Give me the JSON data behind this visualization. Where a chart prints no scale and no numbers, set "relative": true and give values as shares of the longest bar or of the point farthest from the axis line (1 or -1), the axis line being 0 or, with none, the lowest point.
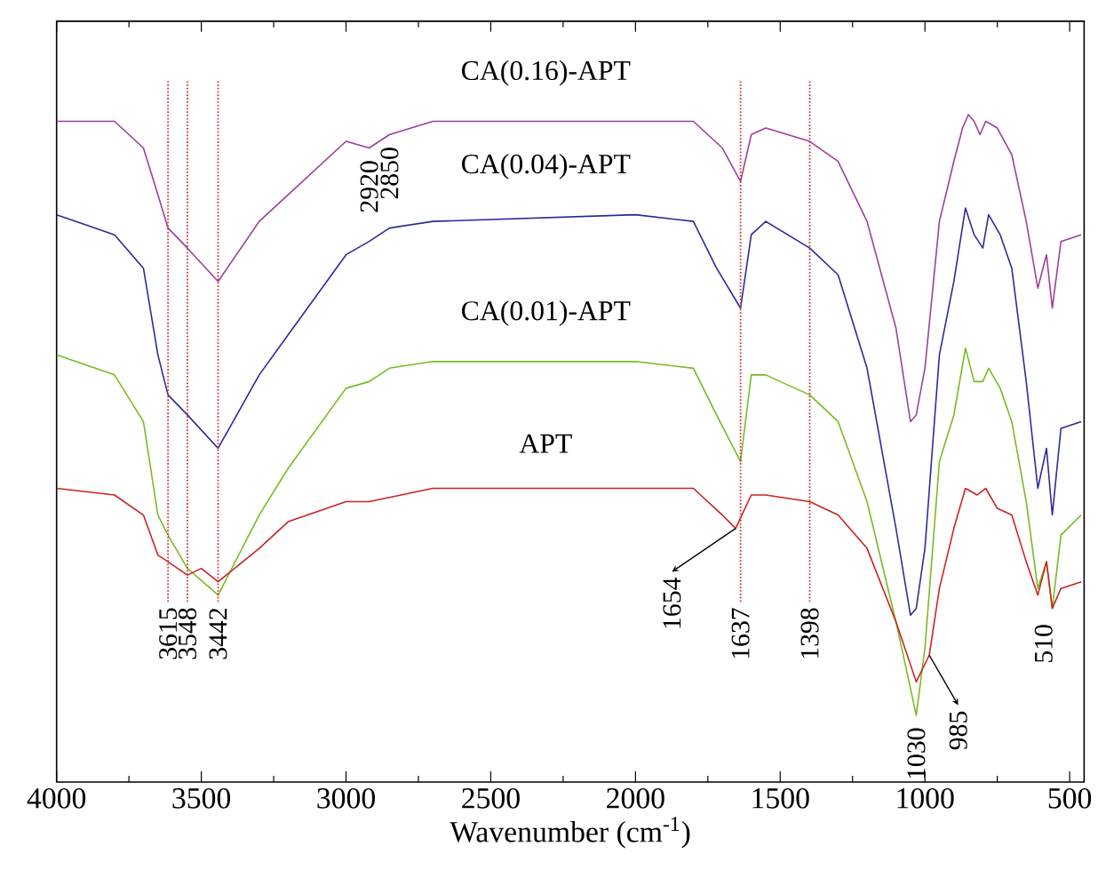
{
  "chart_data": {
    "type": "line",
    "relative": true,
    "xlabel": "Wavenumber (cm$^{-1}$)",
    "xlim": [
      4000,
      450
    ],
    "xticks": [
      4000,
      3500,
      3000,
      2500,
      2000,
      1500,
      1000,
      500
    ],
    "tick_labels": "x",
    "series": [
      {
        "name": "CA(0.16)-APT",
        "color": "#9b3f9b",
        "x": [
          4000,
          3800,
          3700,
          3650,
          3615,
          3548,
          3442,
          3300,
          3200,
          3000,
          2920,
          2850,
          2700,
          2000,
          1800,
          1700,
          1637,
          1600,
          1550,
          1398,
          1300,
          1200,
          1100,
          1050,
          1030,
          1000,
          950,
          900,
          870,
          850,
          830,
          810,
          790,
          750,
          700,
          650,
          610,
          580,
          560,
          530,
          460
        ],
        "values": [
          0.99,
          0.99,
          0.95,
          0.88,
          0.83,
          0.8,
          0.75,
          0.84,
          0.88,
          0.96,
          0.95,
          0.97,
          0.99,
          0.99,
          0.99,
          0.95,
          0.9,
          0.97,
          0.98,
          0.96,
          0.93,
          0.84,
          0.68,
          0.54,
          0.55,
          0.62,
          0.84,
          0.93,
          0.98,
          1.0,
          0.99,
          0.97,
          0.99,
          0.98,
          0.94,
          0.84,
          0.74,
          0.79,
          0.71,
          0.81,
          0.82
        ]
      },
      {
        "name": "CA(0.04)-APT",
        "color": "#2a2a9a",
        "x": [
          4000,
          3800,
          3700,
          3650,
          3615,
          3548,
          3442,
          3300,
          3200,
          3000,
          2920,
          2850,
          2700,
          2000,
          1800,
          1720,
          1637,
          1600,
          1550,
          1398,
          1300,
          1200,
          1100,
          1050,
          1030,
          1000,
          950,
          900,
          860,
          830,
          800,
          780,
          740,
          700,
          650,
          610,
          580,
          560,
          530,
          460
        ],
        "values": [
          0.85,
          0.82,
          0.77,
          0.64,
          0.58,
          0.55,
          0.5,
          0.61,
          0.67,
          0.79,
          0.81,
          0.83,
          0.84,
          0.85,
          0.84,
          0.77,
          0.71,
          0.82,
          0.84,
          0.8,
          0.76,
          0.62,
          0.38,
          0.25,
          0.26,
          0.35,
          0.64,
          0.75,
          0.86,
          0.82,
          0.8,
          0.85,
          0.82,
          0.77,
          0.6,
          0.44,
          0.5,
          0.4,
          0.53,
          0.54
        ]
      },
      {
        "name": "CA(0.01)-APT",
        "color": "#77bb22",
        "x": [
          4000,
          3800,
          3700,
          3650,
          3615,
          3548,
          3442,
          3300,
          3200,
          3000,
          2920,
          2850,
          2700,
          2000,
          1800,
          1720,
          1637,
          1600,
          1550,
          1398,
          1300,
          1200,
          1100,
          1030,
          1000,
          950,
          900,
          860,
          830,
          800,
          780,
          740,
          700,
          650,
          610,
          580,
          560,
          530,
          460
        ],
        "values": [
          0.64,
          0.61,
          0.54,
          0.4,
          0.37,
          0.32,
          0.28,
          0.4,
          0.47,
          0.59,
          0.6,
          0.62,
          0.63,
          0.63,
          0.62,
          0.55,
          0.48,
          0.61,
          0.61,
          0.58,
          0.54,
          0.42,
          0.24,
          0.1,
          0.2,
          0.48,
          0.55,
          0.65,
          0.6,
          0.6,
          0.62,
          0.59,
          0.54,
          0.42,
          0.29,
          0.33,
          0.26,
          0.37,
          0.4
        ]
      },
      {
        "name": "APT",
        "color": "#cc2222",
        "x": [
          4000,
          3800,
          3700,
          3650,
          3615,
          3548,
          3500,
          3442,
          3300,
          3200,
          3000,
          2920,
          2700,
          2000,
          1800,
          1700,
          1654,
          1600,
          1550,
          1398,
          1300,
          1200,
          1100,
          1030,
          985,
          950,
          900,
          860,
          820,
          790,
          750,
          700,
          650,
          610,
          580,
          560,
          530,
          460
        ],
        "values": [
          0.44,
          0.43,
          0.4,
          0.34,
          0.33,
          0.31,
          0.32,
          0.3,
          0.35,
          0.39,
          0.42,
          0.42,
          0.44,
          0.44,
          0.44,
          0.4,
          0.38,
          0.43,
          0.43,
          0.42,
          0.4,
          0.35,
          0.24,
          0.15,
          0.19,
          0.29,
          0.38,
          0.44,
          0.43,
          0.44,
          0.41,
          0.4,
          0.33,
          0.28,
          0.33,
          0.26,
          0.29,
          0.3
        ]
      }
    ],
    "ref_lines": [
      {
        "axis": "x",
        "value": 3615,
        "label": "3615",
        "color": "#dd3333"
      },
      {
        "axis": "x",
        "value": 3548,
        "label": "3548",
        "color": "#dd3333"
      },
      {
        "axis": "x",
        "value": 3442,
        "label": "3442",
        "color": "#dd3333"
      },
      {
        "axis": "x",
        "value": 1637,
        "label": "1637",
        "color": "#dd3333"
      },
      {
        "axis": "x",
        "value": 1398,
        "label": "1398",
        "color": "#dd3333"
      }
    ],
    "annotations": [
      {
        "text": "2920",
        "x": 2920,
        "y": 0.95
      },
      {
        "text": "2850",
        "x": 2850,
        "y": 0.97
      },
      {
        "text": "1654",
        "x": 1654,
        "y": 0.38
      },
      {
        "text": "1030",
        "x": 1030,
        "y": 0.1
      },
      {
        "text": "985",
        "x": 985,
        "y": 0.19
      },
      {
        "text": "510",
        "x": 510,
        "y": 0.3
      }
    ]
  }
}
